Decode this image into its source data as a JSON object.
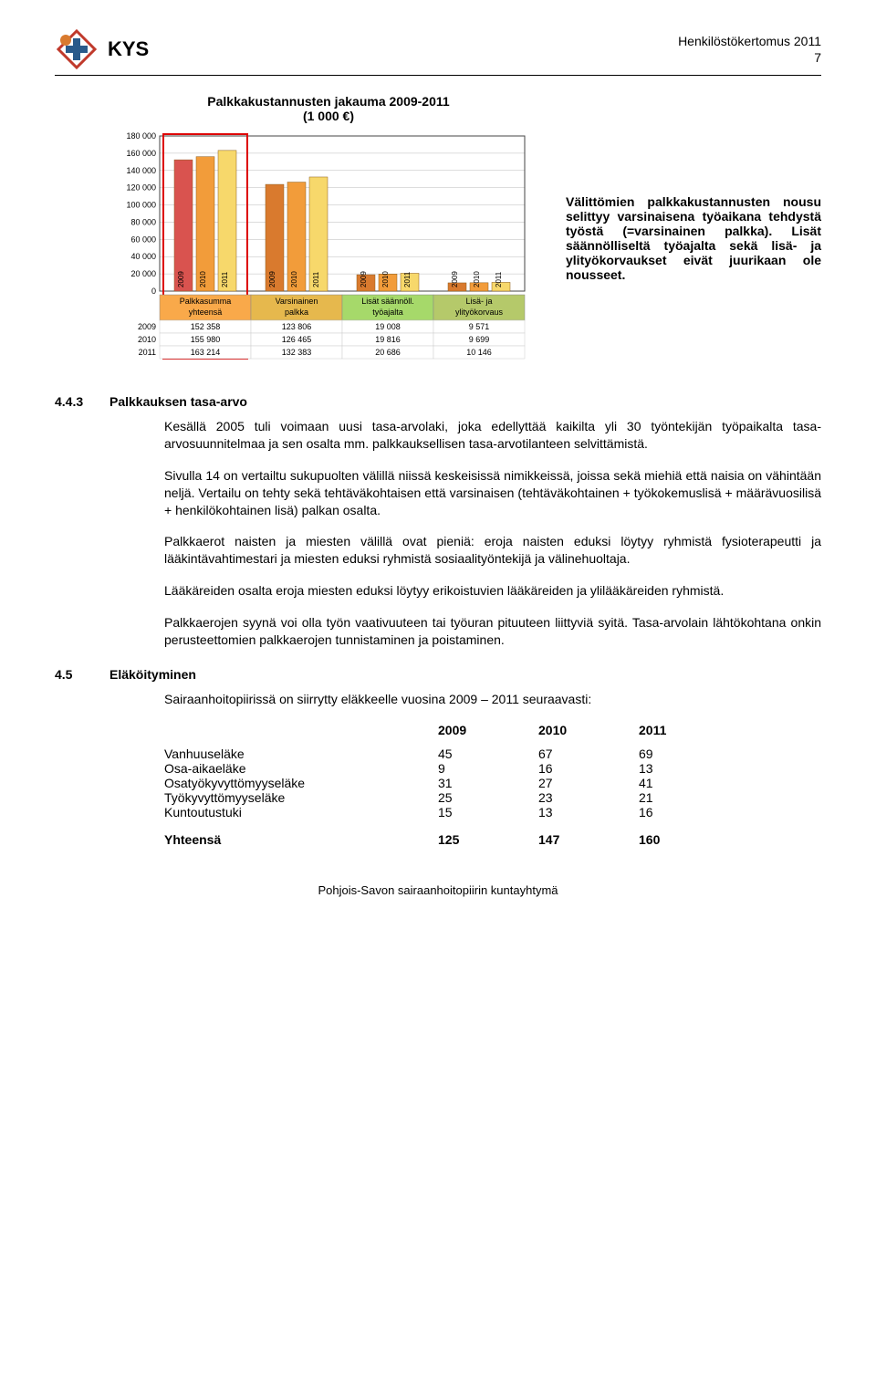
{
  "header": {
    "org_name": "KYS",
    "doc_title": "Henkilöstökertomus 2011",
    "page_number": "7"
  },
  "chart": {
    "type": "bar",
    "title": "Palkkakustannusten jakauma 2009-2011",
    "subtitle": "(1 000 €)",
    "y_ticks": [
      "0",
      "20 000",
      "40 000",
      "60 000",
      "80 000",
      "100 000",
      "120 000",
      "140 000",
      "160 000",
      "180 000"
    ],
    "ylim": [
      0,
      180000
    ],
    "years": [
      "2009",
      "2010",
      "2011"
    ],
    "groups": [
      {
        "label_top": "Palkkasumma",
        "label_bot": "yhteensä",
        "bg": "#f9a94a",
        "values": [
          152358,
          155980,
          163214
        ],
        "bar_colors": [
          "#d9534f",
          "#f29c3a",
          "#f7d86b"
        ],
        "highlight": true
      },
      {
        "label_top": "Varsinainen",
        "label_bot": "palkka",
        "bg": "#e6b84d",
        "values": [
          123806,
          126465,
          132383
        ],
        "bar_colors": [
          "#d97a2e",
          "#f29c3a",
          "#f7d86b"
        ]
      },
      {
        "label_top": "Lisät säännöll.",
        "label_bot": "työajalta",
        "bg": "#a6d96a",
        "values": [
          19008,
          19816,
          20686
        ],
        "bar_colors": [
          "#d97a2e",
          "#f29c3a",
          "#f7d86b"
        ]
      },
      {
        "label_top": "Lisä- ja",
        "label_bot": "ylityökorvaus",
        "bg": "#b5c96a",
        "values": [
          9571,
          9699,
          10146
        ],
        "bar_colors": [
          "#d97a2e",
          "#f29c3a",
          "#f7d86b"
        ]
      }
    ],
    "table_rows": [
      {
        "year": "2009",
        "cells": [
          "152 358",
          "123 806",
          "19 008",
          "9 571"
        ]
      },
      {
        "year": "2010",
        "cells": [
          "155 980",
          "126 465",
          "19 816",
          "9 699"
        ]
      },
      {
        "year": "2011",
        "cells": [
          "163 214",
          "132 383",
          "20 686",
          "10 146"
        ]
      }
    ],
    "caption": "Välittömien palkkakustannusten nousu selittyy varsinaisena työaikana tehdystä työstä (=varsinainen palkka). Lisät säännölliseltä työajalta sekä lisä- ja ylityökorvaukset eivät juurikaan ole nousseet."
  },
  "section_443": {
    "num": "4.4.3",
    "title": "Palkkauksen tasa-arvo",
    "p1": "Kesällä 2005 tuli voimaan uusi tasa-arvolaki, joka edellyttää kaikilta yli 30 työntekijän työpaikalta tasa-arvosuunnitelmaa ja sen osalta mm. palkkauksellisen tasa-arvotilanteen selvittämistä.",
    "p2": "Sivulla 14 on vertailtu sukupuolten välillä niissä keskeisissä nimikkeissä, joissa sekä miehiä että naisia on vähintään neljä. Vertailu on tehty sekä tehtäväkohtaisen että varsinaisen (tehtäväkohtainen + työkokemuslisä + määrävuosilisä + henkilökohtainen lisä) palkan osalta.",
    "p3": "Palkkaerot naisten ja miesten välillä ovat pieniä: eroja naisten eduksi löytyy ryhmistä fysioterapeutti ja lääkintävahtimestari ja miesten eduksi ryhmistä sosiaalityöntekijä ja välinehuoltaja.",
    "p4": "Lääkäreiden osalta eroja miesten eduksi löytyy erikoistuvien lääkäreiden ja ylilääkäreiden ryhmistä.",
    "p5": "Palkkaerojen syynä voi olla työn vaativuuteen tai työuran pituuteen liittyviä syitä. Tasa-arvolain lähtökohtana onkin perusteettomien palkkaerojen tunnistaminen ja poistaminen."
  },
  "section_45": {
    "num": "4.5",
    "title": "Eläköityminen",
    "intro": "Sairaanhoitopiirissä on siirrytty eläkkeelle vuosina 2009 – 2011 seuraavasti:",
    "head": [
      "2009",
      "2010",
      "2011"
    ],
    "rows": [
      {
        "label": "Vanhuuseläke",
        "v": [
          "45",
          "67",
          "69"
        ]
      },
      {
        "label": "Osa-aikaeläke",
        "v": [
          "9",
          "16",
          "13"
        ]
      },
      {
        "label": "Osatyökyvyttömyyseläke",
        "v": [
          "31",
          "27",
          "41"
        ]
      },
      {
        "label": "Työkyvyttömyyseläke",
        "v": [
          "25",
          "23",
          "21"
        ]
      },
      {
        "label": "Kuntoutustuki",
        "v": [
          "15",
          "13",
          "16"
        ]
      }
    ],
    "total": {
      "label": "Yhteensä",
      "v": [
        "125",
        "147",
        "160"
      ]
    }
  },
  "footer": "Pohjois-Savon sairaanhoitopiirin kuntayhtymä"
}
